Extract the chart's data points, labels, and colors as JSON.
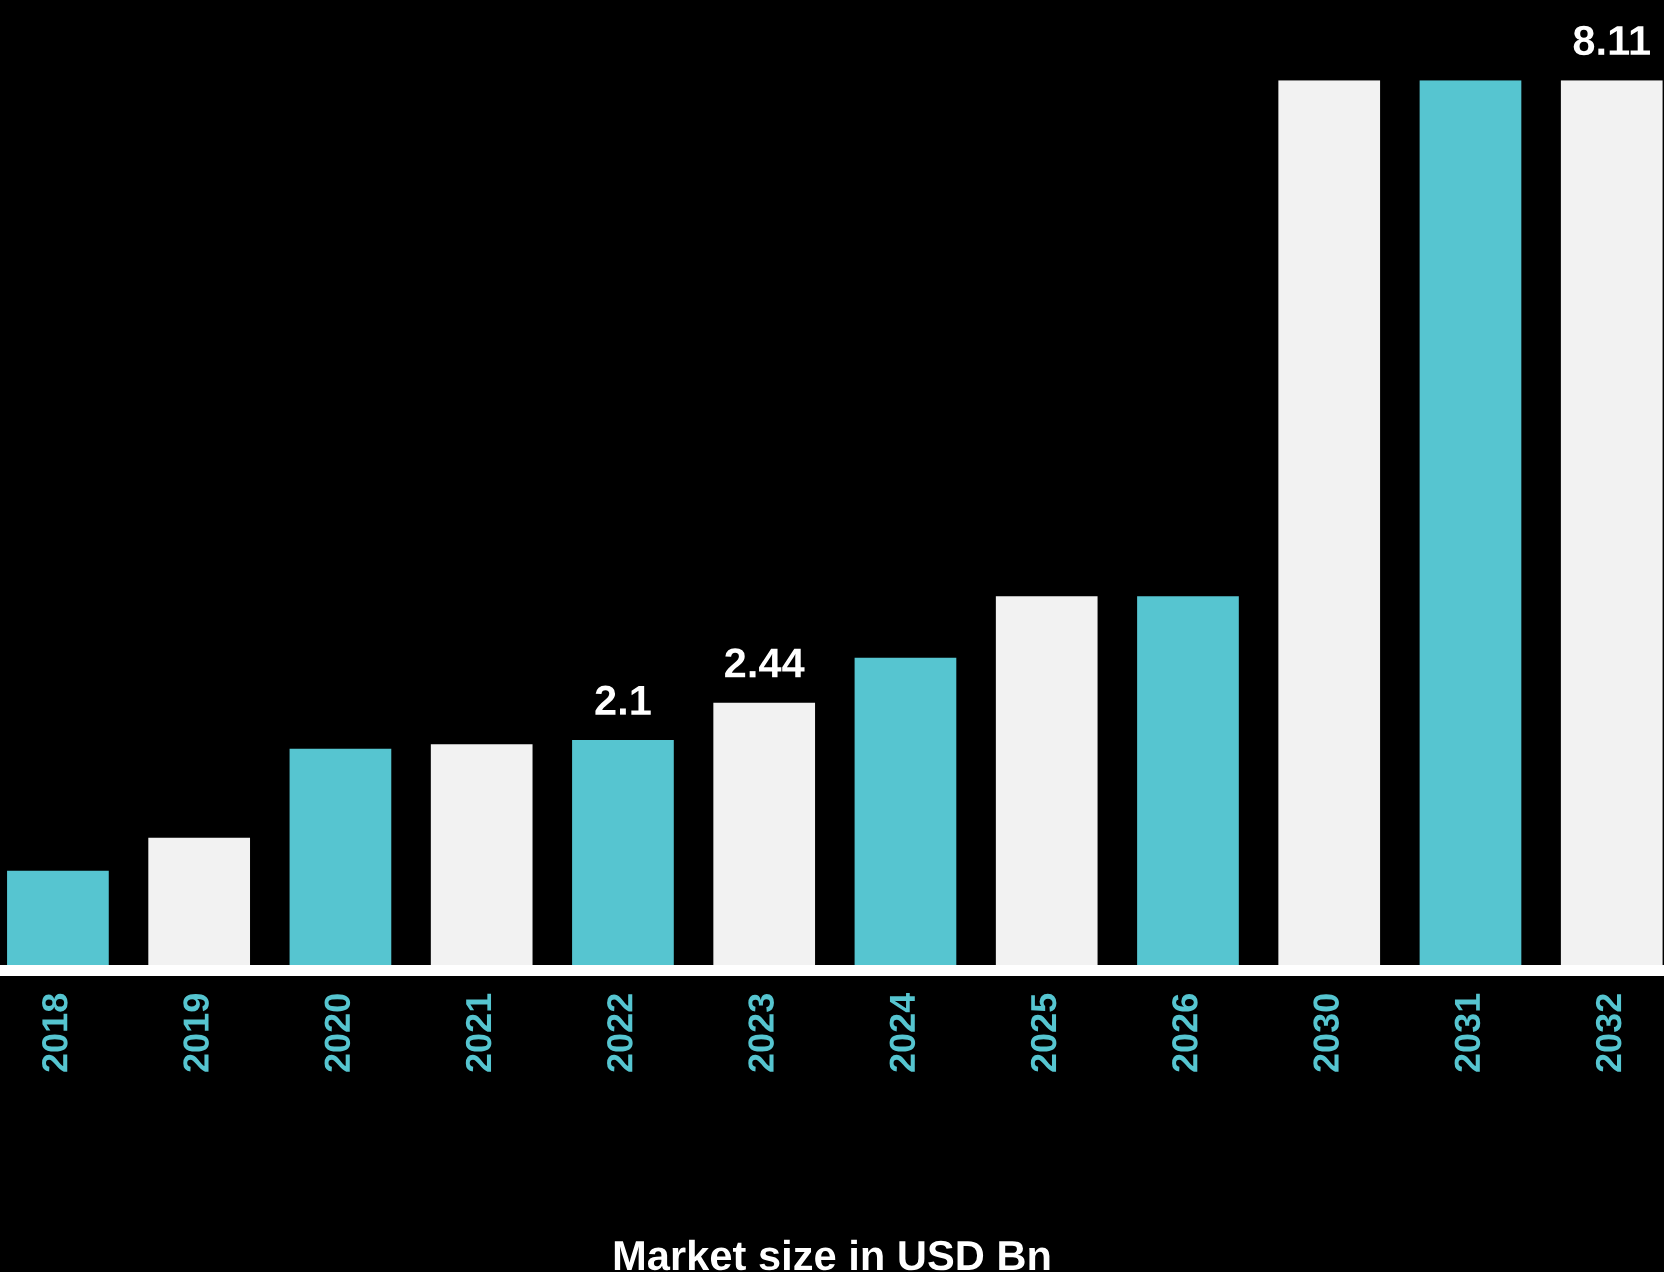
{
  "chart_data": {
    "type": "bar",
    "xlabel": "Market size in USD Bn",
    "categories": [
      "2018",
      "2019",
      "2020",
      "2021",
      "2022",
      "2023",
      "2024",
      "2025",
      "2026",
      "2030",
      "2031",
      "2032"
    ],
    "values": [
      0.91,
      1.21,
      2.02,
      2.06,
      2.1,
      2.44,
      2.85,
      3.41,
      3.41,
      8.11,
      8.11,
      8.11
    ],
    "colors": [
      "#56c5d0",
      "#f2f2f2",
      "#56c5d0",
      "#f2f2f2",
      "#56c5d0",
      "#f2f2f2",
      "#56c5d0",
      "#f2f2f2",
      "#56c5d0",
      "#f2f2f2",
      "#56c5d0",
      "#f2f2f2"
    ],
    "value_labels": [
      null,
      null,
      null,
      null,
      "2.1",
      "2.44",
      null,
      null,
      null,
      null,
      null,
      "8.11"
    ],
    "grid": false,
    "legend": false
  }
}
